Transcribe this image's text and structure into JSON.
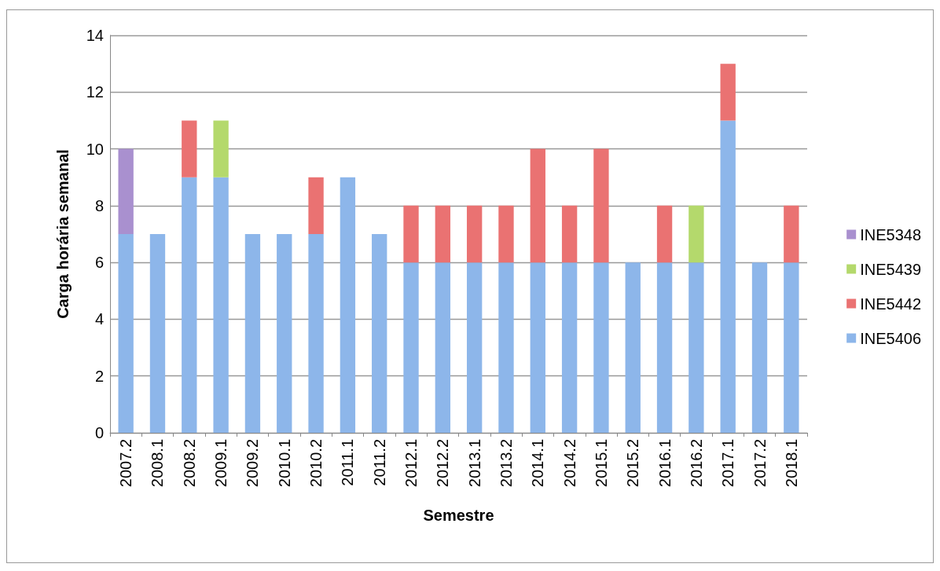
{
  "chart_data": {
    "type": "bar",
    "stacked": true,
    "xlabel": "Semestre",
    "ylabel": "Carga horária semanal",
    "categories": [
      "2007.2",
      "2008.1",
      "2008.2",
      "2009.1",
      "2009.2",
      "2010.1",
      "2010.2",
      "2011.1",
      "2011.2",
      "2012.1",
      "2012.2",
      "2013.1",
      "2013.2",
      "2014.1",
      "2014.2",
      "2015.1",
      "2015.2",
      "2016.1",
      "2016.2",
      "2017.1",
      "2017.2",
      "2018.1"
    ],
    "series": [
      {
        "name": "INE5406",
        "color": "#8db6ea",
        "values": [
          7,
          7,
          9,
          9,
          7,
          7,
          7,
          9,
          7,
          6,
          6,
          6,
          6,
          6,
          6,
          6,
          6,
          6,
          6,
          11,
          6,
          6
        ]
      },
      {
        "name": "INE5442",
        "color": "#ea7272",
        "values": [
          null,
          null,
          2,
          null,
          null,
          null,
          2,
          null,
          null,
          2,
          2,
          2,
          2,
          4,
          2,
          4,
          null,
          2,
          null,
          2,
          null,
          2
        ]
      },
      {
        "name": "INE5439",
        "color": "#b4d96c",
        "values": [
          null,
          null,
          null,
          2,
          null,
          null,
          null,
          null,
          null,
          null,
          null,
          null,
          null,
          null,
          null,
          null,
          null,
          null,
          2,
          null,
          null,
          null
        ]
      },
      {
        "name": "INE5348",
        "color": "#a990cf",
        "values": [
          3,
          null,
          null,
          null,
          null,
          null,
          null,
          null,
          null,
          null,
          null,
          null,
          null,
          null,
          null,
          null,
          null,
          null,
          null,
          null,
          null,
          null
        ]
      }
    ],
    "ylim": [
      0,
      14
    ],
    "yticks": [
      0,
      2,
      4,
      6,
      8,
      10,
      12,
      14
    ],
    "grid": "y",
    "legend": "right"
  }
}
